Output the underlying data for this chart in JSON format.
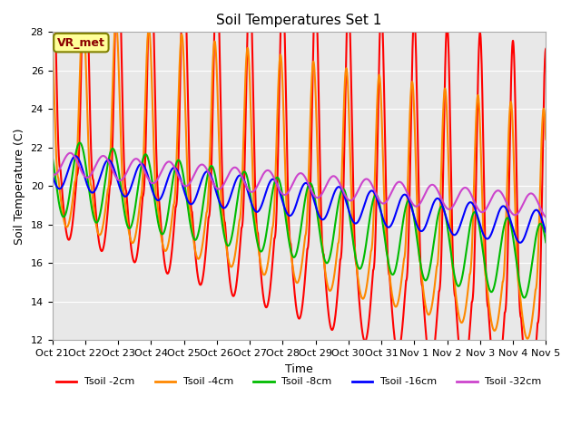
{
  "title": "Soil Temperatures Set 1",
  "xlabel": "Time",
  "ylabel": "Soil Temperature (C)",
  "ylim": [
    12,
    28
  ],
  "yticks": [
    12,
    14,
    16,
    18,
    20,
    22,
    24,
    26,
    28
  ],
  "annotation_text": "VR_met",
  "line_colors": [
    "#ff0000",
    "#ff8800",
    "#00bb00",
    "#0000ff",
    "#cc44cc"
  ],
  "line_labels": [
    "Tsoil -2cm",
    "Tsoil -4cm",
    "Tsoil -8cm",
    "Tsoil -16cm",
    "Tsoil -32cm"
  ],
  "line_widths": [
    1.5,
    1.5,
    1.5,
    1.5,
    1.5
  ],
  "bg_color": "#e8e8e8",
  "fig_color": "#ffffff",
  "tick_labels": [
    "Oct 21",
    "Oct 22",
    "Oct 23",
    "Oct 24",
    "Oct 25",
    "Oct 26",
    "Oct 27",
    "Oct 28",
    "Oct 29",
    "Oct 30",
    "Oct 31",
    "Nov 1",
    "Nov 2",
    "Nov 3",
    "Nov 4",
    "Nov 5"
  ]
}
